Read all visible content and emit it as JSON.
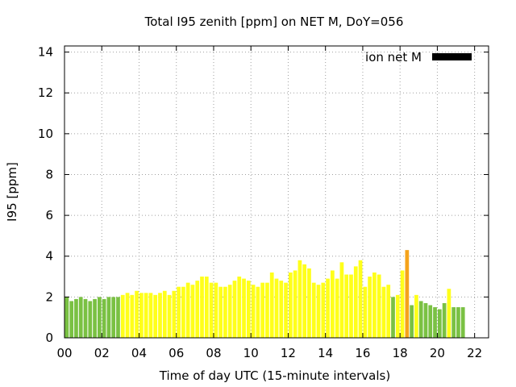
{
  "chart_data": {
    "type": "bar",
    "title": "Total I95 zenith [ppm] on NET M, DoY=056",
    "xlabel": "Time of day UTC (15-minute intervals)",
    "ylabel": "I95 [ppm]",
    "xlim": [
      0,
      22.75
    ],
    "ylim": [
      0,
      14.3
    ],
    "xticks": [
      "00",
      "02",
      "04",
      "06",
      "08",
      "10",
      "12",
      "14",
      "16",
      "18",
      "20",
      "22"
    ],
    "xtick_values": [
      0,
      2,
      4,
      6,
      8,
      10,
      12,
      14,
      16,
      18,
      20,
      22
    ],
    "yticks": [
      "0",
      "2",
      "4",
      "6",
      "8",
      "10",
      "12",
      "14"
    ],
    "ytick_values": [
      0,
      2,
      4,
      6,
      8,
      10,
      12,
      14
    ],
    "grid": true,
    "legend": {
      "label": "ion net M",
      "color": "#000000",
      "placement": "top-right"
    },
    "interval_hours": 0.25,
    "color_scale": {
      "low": "#7ac143",
      "mid": "#ffff1a",
      "high": "#f5a31a"
    },
    "values": [
      2.0,
      1.8,
      1.9,
      2.0,
      1.9,
      1.8,
      1.9,
      2.0,
      1.9,
      2.0,
      2.0,
      2.0,
      2.1,
      2.2,
      2.1,
      2.3,
      2.2,
      2.2,
      2.2,
      2.1,
      2.2,
      2.3,
      2.1,
      2.3,
      2.5,
      2.5,
      2.7,
      2.6,
      2.8,
      3.0,
      3.0,
      2.7,
      2.7,
      2.5,
      2.5,
      2.6,
      2.8,
      3.0,
      2.9,
      2.8,
      2.6,
      2.5,
      2.7,
      2.7,
      3.2,
      2.9,
      2.8,
      2.7,
      3.2,
      3.3,
      3.8,
      3.6,
      3.4,
      2.7,
      2.6,
      2.7,
      2.9,
      3.3,
      2.9,
      3.7,
      3.1,
      3.1,
      3.5,
      3.8,
      2.5,
      3.0,
      3.2,
      3.1,
      2.5,
      2.6,
      2.0,
      2.1,
      3.3,
      4.3,
      1.6,
      2.1,
      1.8,
      1.7,
      1.6,
      1.5,
      1.4,
      1.7,
      2.4,
      1.5,
      1.5,
      1.5
    ],
    "bar_levels": [
      "low",
      "low",
      "low",
      "low",
      "low",
      "low",
      "low",
      "low",
      "low",
      "low",
      "low",
      "low",
      "mid",
      "mid",
      "mid",
      "mid",
      "mid",
      "mid",
      "mid",
      "mid",
      "mid",
      "mid",
      "mid",
      "mid",
      "mid",
      "mid",
      "mid",
      "mid",
      "mid",
      "mid",
      "mid",
      "mid",
      "mid",
      "mid",
      "mid",
      "mid",
      "mid",
      "mid",
      "mid",
      "mid",
      "mid",
      "mid",
      "mid",
      "mid",
      "mid",
      "mid",
      "mid",
      "mid",
      "mid",
      "mid",
      "mid",
      "mid",
      "mid",
      "mid",
      "mid",
      "mid",
      "mid",
      "mid",
      "mid",
      "mid",
      "mid",
      "mid",
      "mid",
      "mid",
      "mid",
      "mid",
      "mid",
      "mid",
      "mid",
      "mid",
      "low",
      "mid",
      "mid",
      "high",
      "low",
      "mid",
      "low",
      "low",
      "low",
      "low",
      "low",
      "low",
      "mid",
      "low",
      "low",
      "low"
    ]
  }
}
